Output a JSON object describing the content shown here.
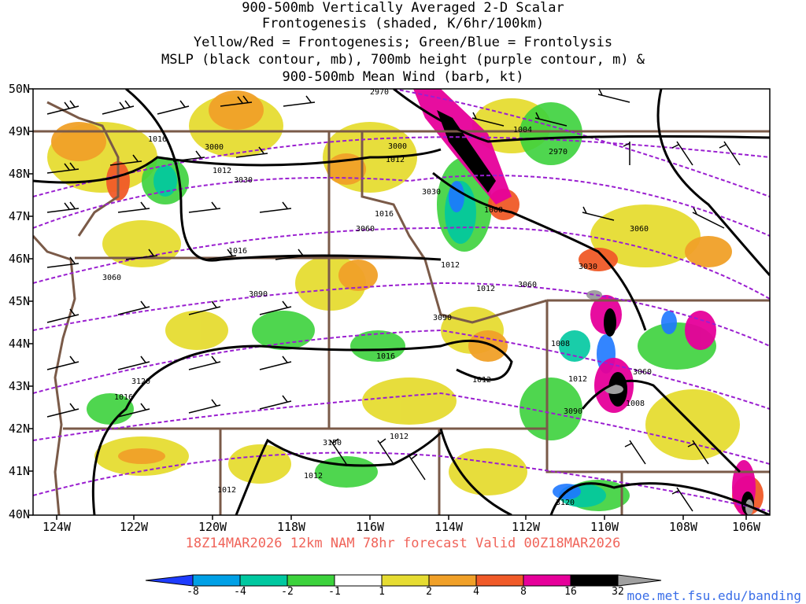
{
  "title_lines": [
    "900-500mb Vertically Averaged 2-D Scalar",
    "Frontogenesis (shaded, K/6hr/100km)",
    "Yellow/Red = Frontogenesis;  Green/Blue = Frontolysis",
    "MSLP (black contour, mb), 700mb height (purple contour, m) &",
    "900-500mb Mean Wind (barb, kt)"
  ],
  "lat_labels": [
    "50N",
    "49N",
    "48N",
    "47N",
    "46N",
    "45N",
    "44N",
    "43N",
    "42N",
    "41N",
    "40N"
  ],
  "lon_labels": [
    "124W",
    "122W",
    "120W",
    "118W",
    "116W",
    "114W",
    "112W",
    "110W",
    "108W",
    "106W"
  ],
  "forecast_line": "18Z14MAR2026 12km NAM 78hr forecast Valid 00Z18MAR2026",
  "colorbar": {
    "labels": [
      "-8",
      "-4",
      "-2",
      "-1",
      "1",
      "2",
      "4",
      "8",
      "16",
      "32"
    ],
    "colors": [
      "#1e3cff",
      "#00a0e6",
      "#00c8a0",
      "#3cd23c",
      "#ffffff",
      "#e6dc32",
      "#f0a028",
      "#f05a28",
      "#f01464",
      "#e6009a",
      "#000000",
      "#a0a0a0"
    ]
  },
  "isobar_labels": [
    "1016",
    "1012",
    "1008",
    "1004",
    "1016",
    "1012",
    "1008",
    "1016",
    "1012",
    "1012",
    "1016",
    "1012",
    "1016",
    "1012",
    "1012",
    "1012",
    "1008",
    "1012"
  ],
  "height_labels": [
    "2970",
    "3000",
    "3030",
    "2970",
    "3000",
    "3030",
    "3060",
    "3060",
    "3030",
    "3060",
    "3090",
    "3090",
    "3060",
    "3120",
    "3090",
    "3150",
    "3120",
    "3060"
  ],
  "credit": "moe.met.fsu.edu/banding"
}
